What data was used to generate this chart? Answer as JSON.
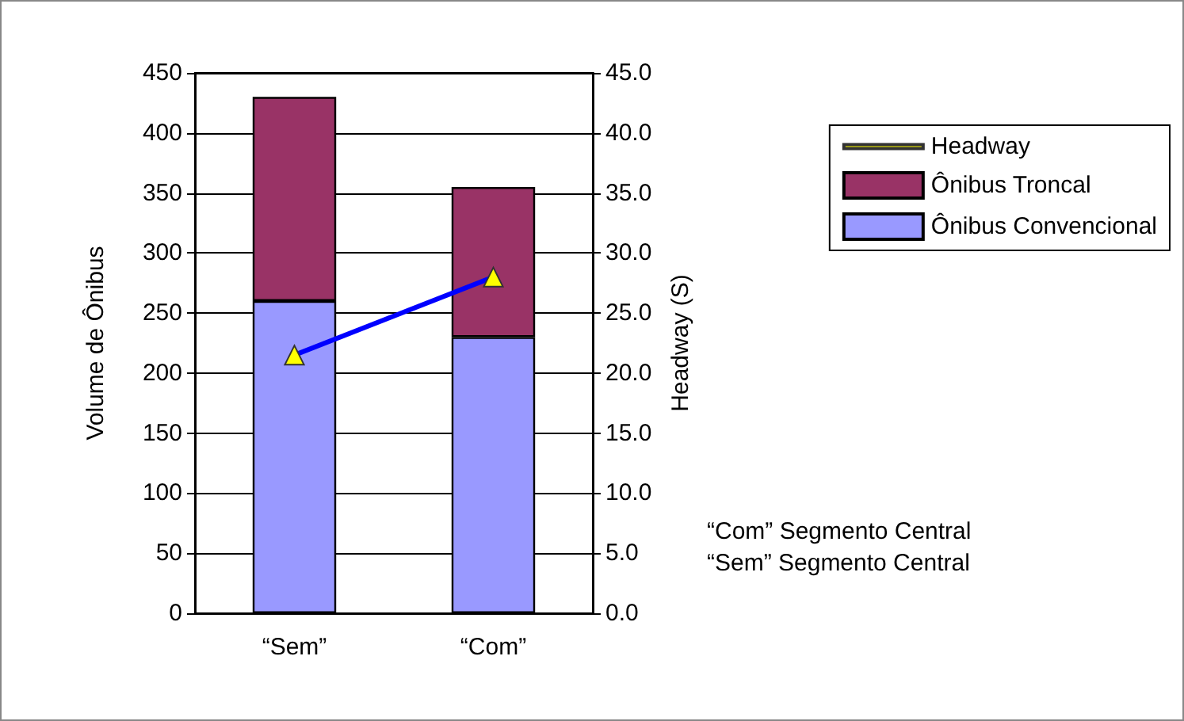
{
  "chart_data": {
    "type": "bar",
    "stacked": true,
    "categories": [
      "“Sem”",
      "“Com”"
    ],
    "ylabel": "Volume de Ônibus",
    "y2label": "Headway (S)",
    "ylim": [
      0,
      450
    ],
    "yticks": [
      0,
      50,
      100,
      150,
      200,
      250,
      300,
      350,
      400,
      450
    ],
    "y2lim": [
      0,
      45
    ],
    "y2ticks": [
      {
        "value": 0,
        "label": "0.0"
      },
      {
        "value": 5,
        "label": "5.0"
      },
      {
        "value": 10,
        "label": "10.0"
      },
      {
        "value": 15,
        "label": "15.0"
      },
      {
        "value": 20,
        "label": "20.0"
      },
      {
        "value": 25,
        "label": "25.0"
      },
      {
        "value": 30,
        "label": "30.0"
      },
      {
        "value": 35,
        "label": "35.0"
      },
      {
        "value": 40,
        "label": "40.0"
      },
      {
        "value": 45,
        "label": "45.0"
      }
    ],
    "series": [
      {
        "name": "Ônibus Convencional",
        "color": "#9999ff",
        "values": [
          260,
          230
        ]
      },
      {
        "name": "Ônibus Troncal",
        "color": "#993366",
        "values": [
          170,
          125
        ]
      },
      {
        "name": "Headway",
        "type": "line",
        "axis": "y2",
        "color": "#0000ff",
        "marker": "triangle",
        "values": [
          21.5,
          28
        ]
      }
    ],
    "grid": "y",
    "legend": "top right",
    "annotations": [
      "“Com” Segmento Central",
      "“Sem” Segmento Central"
    ]
  }
}
